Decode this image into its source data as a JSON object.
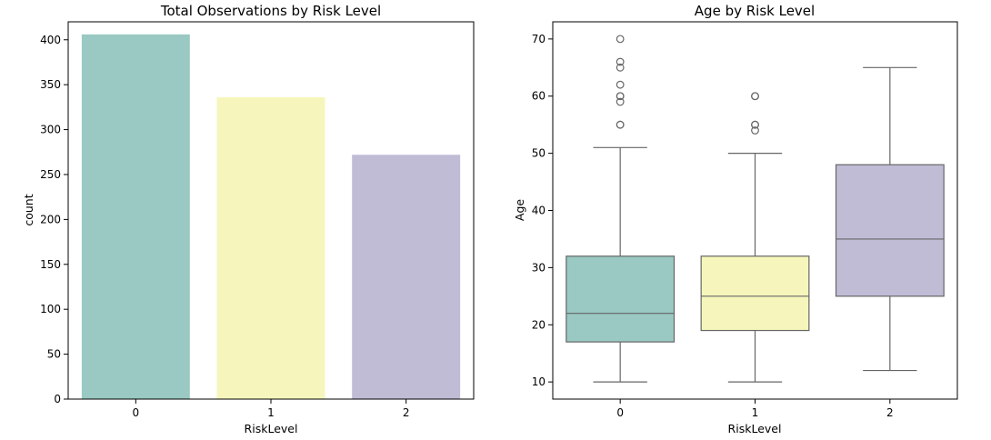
{
  "colors": {
    "palette": [
      "#99c9c2",
      "#f6f6bc",
      "#c0bcd6"
    ],
    "line": "#666666"
  },
  "chart_data": [
    {
      "type": "bar",
      "title": "Total Observations by Risk Level",
      "xlabel": "RiskLevel",
      "ylabel": "count",
      "categories": [
        "0",
        "1",
        "2"
      ],
      "values": [
        406,
        336,
        272
      ],
      "ylim": [
        0,
        420
      ],
      "yticks": [
        0,
        50,
        100,
        150,
        200,
        250,
        300,
        350,
        400
      ],
      "grid": false,
      "legend": "none"
    },
    {
      "type": "box",
      "title": "Age by Risk Level",
      "xlabel": "RiskLevel",
      "ylabel": "Age",
      "categories": [
        "0",
        "1",
        "2"
      ],
      "boxes": [
        {
          "category": "0",
          "whisker_low": 10,
          "q1": 17,
          "median": 22,
          "q3": 32,
          "whisker_high": 51,
          "fliers": [
            55,
            55,
            59,
            60,
            60,
            62,
            65,
            66,
            70
          ]
        },
        {
          "category": "1",
          "whisker_low": 10,
          "q1": 19,
          "median": 25,
          "q3": 32,
          "whisker_high": 50,
          "fliers": [
            54,
            55,
            55,
            60,
            60
          ]
        },
        {
          "category": "2",
          "whisker_low": 12,
          "q1": 25,
          "median": 35,
          "q3": 48,
          "whisker_high": 65,
          "fliers": []
        }
      ],
      "ylim": [
        7,
        73
      ],
      "yticks": [
        10,
        20,
        30,
        40,
        50,
        60,
        70
      ],
      "grid": false,
      "legend": "none"
    }
  ]
}
